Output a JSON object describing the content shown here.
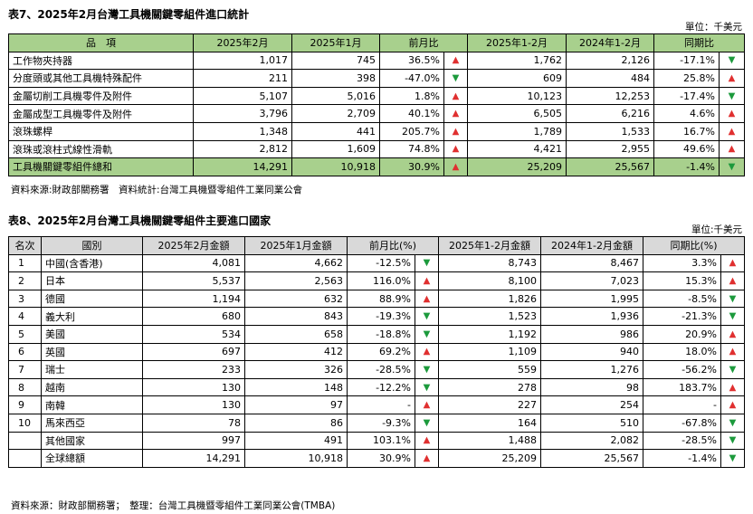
{
  "table7": {
    "title": "表7、2025年2月台灣工具機關鍵零組件進口統計",
    "unit": "單位：千美元",
    "headers": [
      "品　項",
      "2025年2月",
      "2025年1月",
      "前月比",
      "2025年1-2月",
      "2024年1-2月",
      "同期比"
    ],
    "rows": [
      {
        "name": "工作物夾持器",
        "feb": "1,017",
        "jan": "745",
        "mom": "36.5%",
        "mom_dir": "up",
        "ytd25": "1,762",
        "ytd24": "2,126",
        "yoy": "-17.1%",
        "yoy_dir": "down"
      },
      {
        "name": "分度頭或其他工具機特殊配件",
        "feb": "211",
        "jan": "398",
        "mom": "-47.0%",
        "mom_dir": "down",
        "ytd25": "609",
        "ytd24": "484",
        "yoy": "25.8%",
        "yoy_dir": "up"
      },
      {
        "name": "金屬切削工具機零件及附件",
        "feb": "5,107",
        "jan": "5,016",
        "mom": "1.8%",
        "mom_dir": "up",
        "ytd25": "10,123",
        "ytd24": "12,253",
        "yoy": "-17.4%",
        "yoy_dir": "down"
      },
      {
        "name": "金屬成型工具機零件及附件",
        "feb": "3,796",
        "jan": "2,709",
        "mom": "40.1%",
        "mom_dir": "up",
        "ytd25": "6,505",
        "ytd24": "6,216",
        "yoy": "4.6%",
        "yoy_dir": "up"
      },
      {
        "name": "滾珠螺桿",
        "feb": "1,348",
        "jan": "441",
        "mom": "205.7%",
        "mom_dir": "up",
        "ytd25": "1,789",
        "ytd24": "1,533",
        "yoy": "16.7%",
        "yoy_dir": "up"
      },
      {
        "name": "滾珠或滾柱式線性滑軌",
        "feb": "2,812",
        "jan": "1,609",
        "mom": "74.8%",
        "mom_dir": "up",
        "ytd25": "4,421",
        "ytd24": "2,955",
        "yoy": "49.6%",
        "yoy_dir": "up"
      }
    ],
    "total": {
      "name": "工具機關鍵零組件總和",
      "feb": "14,291",
      "jan": "10,918",
      "mom": "30.9%",
      "mom_dir": "up",
      "ytd25": "25,209",
      "ytd24": "25,567",
      "yoy": "-1.4%",
      "yoy_dir": "down"
    },
    "source": "資料來源:財政部關務署　資料統計:台灣工具機暨零組件工業同業公會"
  },
  "table8": {
    "title": "表8、2025年2月台灣工具機關鍵零組件主要進口國家",
    "unit": "單位:千美元",
    "headers": [
      "名次",
      "國別",
      "2025年2月金額",
      "2025年1月金額",
      "前月比(%)",
      "2025年1-2月金額",
      "2024年1-2月金額",
      "同期比(%)"
    ],
    "rows": [
      {
        "rank": "1",
        "country": "中國(含香港)",
        "feb": "4,081",
        "jan": "4,662",
        "mom": "-12.5%",
        "mom_dir": "down",
        "ytd25": "8,743",
        "ytd24": "8,467",
        "yoy": "3.3%",
        "yoy_dir": "up"
      },
      {
        "rank": "2",
        "country": "日本",
        "feb": "5,537",
        "jan": "2,563",
        "mom": "116.0%",
        "mom_dir": "up",
        "ytd25": "8,100",
        "ytd24": "7,023",
        "yoy": "15.3%",
        "yoy_dir": "up"
      },
      {
        "rank": "3",
        "country": "德國",
        "feb": "1,194",
        "jan": "632",
        "mom": "88.9%",
        "mom_dir": "up",
        "ytd25": "1,826",
        "ytd24": "1,995",
        "yoy": "-8.5%",
        "yoy_dir": "down"
      },
      {
        "rank": "4",
        "country": "義大利",
        "feb": "680",
        "jan": "843",
        "mom": "-19.3%",
        "mom_dir": "down",
        "ytd25": "1,523",
        "ytd24": "1,936",
        "yoy": "-21.3%",
        "yoy_dir": "down"
      },
      {
        "rank": "5",
        "country": "美國",
        "feb": "534",
        "jan": "658",
        "mom": "-18.8%",
        "mom_dir": "down",
        "ytd25": "1,192",
        "ytd24": "986",
        "yoy": "20.9%",
        "yoy_dir": "up"
      },
      {
        "rank": "6",
        "country": "英國",
        "feb": "697",
        "jan": "412",
        "mom": "69.2%",
        "mom_dir": "up",
        "ytd25": "1,109",
        "ytd24": "940",
        "yoy": "18.0%",
        "yoy_dir": "up"
      },
      {
        "rank": "7",
        "country": "瑞士",
        "feb": "233",
        "jan": "326",
        "mom": "-28.5%",
        "mom_dir": "down",
        "ytd25": "559",
        "ytd24": "1,276",
        "yoy": "-56.2%",
        "yoy_dir": "down"
      },
      {
        "rank": "8",
        "country": "越南",
        "feb": "130",
        "jan": "148",
        "mom": "-12.2%",
        "mom_dir": "down",
        "ytd25": "278",
        "ytd24": "98",
        "yoy": "183.7%",
        "yoy_dir": "up"
      },
      {
        "rank": "9",
        "country": "南韓",
        "feb": "130",
        "jan": "97",
        "mom": "-",
        "mom_dir": "up",
        "ytd25": "227",
        "ytd24": "254",
        "yoy": "-",
        "yoy_dir": "up"
      },
      {
        "rank": "10",
        "country": "馬來西亞",
        "feb": "78",
        "jan": "86",
        "mom": "-9.3%",
        "mom_dir": "down",
        "ytd25": "164",
        "ytd24": "510",
        "yoy": "-67.8%",
        "yoy_dir": "down"
      },
      {
        "rank": "",
        "country": "其他國家",
        "feb": "997",
        "jan": "491",
        "mom": "103.1%",
        "mom_dir": "up",
        "ytd25": "1,488",
        "ytd24": "2,082",
        "yoy": "-28.5%",
        "yoy_dir": "down"
      },
      {
        "rank": "",
        "country": "全球總額",
        "feb": "14,291",
        "jan": "10,918",
        "mom": "30.9%",
        "mom_dir": "up",
        "ytd25": "25,209",
        "ytd24": "25,567",
        "yoy": "-1.4%",
        "yoy_dir": "down"
      }
    ],
    "source": "資料來源：財政部關務署；　整理：台灣工具機暨零組件工業同業公會(TMBA)"
  },
  "arrows": {
    "up": "▲",
    "down": "▼"
  },
  "colors": {
    "up": "#e03030",
    "down": "#1c9a3c",
    "header_green": "#a8d08d",
    "header_gray": "#d9d9d9"
  }
}
